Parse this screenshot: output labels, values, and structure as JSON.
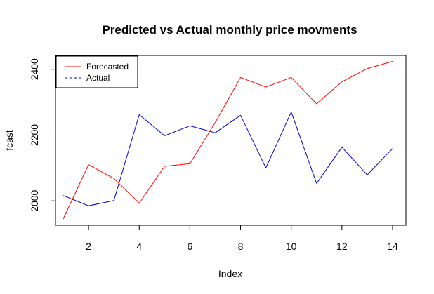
{
  "chart_data": {
    "type": "line",
    "title": "Predicted vs Actual monthly price movments",
    "xlabel": "Index",
    "ylabel": "fcast",
    "x": [
      1,
      2,
      3,
      4,
      5,
      6,
      7,
      8,
      9,
      10,
      11,
      12,
      13,
      14
    ],
    "xlim": [
      1,
      14
    ],
    "ylim": [
      1945,
      2425
    ],
    "x_ticks": [
      2,
      4,
      6,
      8,
      10,
      12,
      14
    ],
    "y_ticks": [
      2000,
      2200,
      2400
    ],
    "legend_position": "top-left",
    "series": [
      {
        "name": "Forecasted",
        "color": "#ff0000",
        "line_style": "solid",
        "values": [
          1945,
          2110,
          2068,
          1993,
          2105,
          2113,
          2238,
          2375,
          2346,
          2375,
          2295,
          2362,
          2402,
          2424
        ]
      },
      {
        "name": "Actual",
        "color": "#0000cc",
        "line_style": "dashed",
        "values": [
          2016,
          1985,
          2001,
          2262,
          2198,
          2228,
          2207,
          2260,
          2100,
          2270,
          2053,
          2163,
          2079,
          2159
        ]
      }
    ]
  }
}
